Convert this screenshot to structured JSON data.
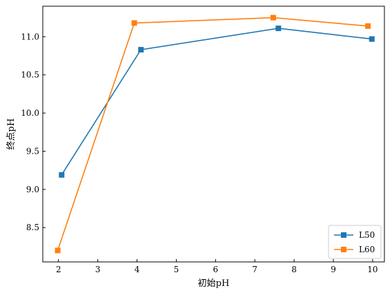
{
  "chart_data": {
    "type": "line",
    "xlabel": "初始pH",
    "ylabel": "终点pH",
    "xlim": [
      1.6,
      10.3
    ],
    "ylim": [
      8.05,
      11.4
    ],
    "xticks": [
      2,
      3,
      4,
      5,
      6,
      7,
      8,
      9,
      10
    ],
    "xtick_labels": [
      "2",
      "3",
      "4",
      "5",
      "6",
      "7",
      "8",
      "9",
      "10"
    ],
    "yticks": [
      8.5,
      9.0,
      9.5,
      10.0,
      10.5,
      11.0
    ],
    "ytick_labels": [
      "8.5",
      "9.0",
      "9.5",
      "10.0",
      "10.5",
      "11.0"
    ],
    "grid": false,
    "legend_position": "lower-right",
    "series": [
      {
        "name": "L50",
        "color": "#1f77b4",
        "marker": "square",
        "x": [
          2.08,
          4.1,
          7.6,
          9.98
        ],
        "y": [
          9.19,
          10.83,
          11.11,
          10.97
        ]
      },
      {
        "name": "L60",
        "color": "#ff7f0e",
        "marker": "square",
        "x": [
          1.98,
          3.93,
          7.47,
          9.88
        ],
        "y": [
          8.2,
          11.18,
          11.25,
          11.14
        ]
      }
    ]
  }
}
